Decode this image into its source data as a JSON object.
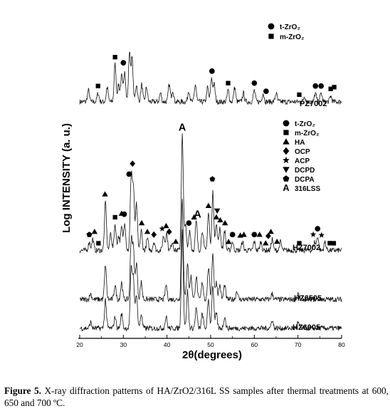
{
  "chart_data": {
    "type": "line",
    "xlabel": "2θ(degrees)",
    "ylabel": "Log INTENSITY (a. u.)",
    "xlim": [
      20,
      80
    ],
    "xticks": [
      20,
      30,
      40,
      50,
      60,
      70,
      80
    ],
    "xtick_labels": [
      "20",
      "30",
      "40",
      "50",
      "60",
      "70",
      "80"
    ],
    "grid": false,
    "series": [
      {
        "name": "PZ7002",
        "baseline": 0.82,
        "peaks": [
          {
            "x": 22.0,
            "h": 0.04
          },
          {
            "x": 24.2,
            "h": 0.03
          },
          {
            "x": 26.3,
            "h": 0.05
          },
          {
            "x": 28.1,
            "h": 0.13
          },
          {
            "x": 28.9,
            "h": 0.06
          },
          {
            "x": 29.6,
            "h": 0.09
          },
          {
            "x": 30.3,
            "h": 0.11
          },
          {
            "x": 31.4,
            "h": 0.17
          },
          {
            "x": 32.0,
            "h": 0.15
          },
          {
            "x": 33.0,
            "h": 0.06
          },
          {
            "x": 34.2,
            "h": 0.06
          },
          {
            "x": 35.3,
            "h": 0.05
          },
          {
            "x": 38.5,
            "h": 0.03
          },
          {
            "x": 40.5,
            "h": 0.06
          },
          {
            "x": 41.3,
            "h": 0.04
          },
          {
            "x": 45.0,
            "h": 0.04
          },
          {
            "x": 46.5,
            "h": 0.06
          },
          {
            "x": 49.3,
            "h": 0.05
          },
          {
            "x": 50.2,
            "h": 0.08
          },
          {
            "x": 50.8,
            "h": 0.06
          },
          {
            "x": 54.0,
            "h": 0.04
          },
          {
            "x": 55.5,
            "h": 0.05
          },
          {
            "x": 57.5,
            "h": 0.03
          },
          {
            "x": 60.0,
            "h": 0.04
          },
          {
            "x": 62.0,
            "h": 0.03
          },
          {
            "x": 65.0,
            "h": 0.03
          },
          {
            "x": 71.5,
            "h": 0.02
          },
          {
            "x": 74.0,
            "h": 0.03
          },
          {
            "x": 75.3,
            "h": 0.03
          },
          {
            "x": 77.5,
            "h": 0.02
          }
        ]
      },
      {
        "name": "HZ7002",
        "baseline": 0.305,
        "peaks": [
          {
            "x": 22.2,
            "h": 0.03
          },
          {
            "x": 23.0,
            "h": 0.04
          },
          {
            "x": 25.9,
            "h": 0.17
          },
          {
            "x": 27.1,
            "h": 0.06
          },
          {
            "x": 28.1,
            "h": 0.09
          },
          {
            "x": 28.9,
            "h": 0.05
          },
          {
            "x": 29.6,
            "h": 0.08
          },
          {
            "x": 30.3,
            "h": 0.1
          },
          {
            "x": 31.8,
            "h": 0.26
          },
          {
            "x": 32.3,
            "h": 0.21
          },
          {
            "x": 33.0,
            "h": 0.16
          },
          {
            "x": 34.1,
            "h": 0.07
          },
          {
            "x": 35.5,
            "h": 0.04
          },
          {
            "x": 37.0,
            "h": 0.03
          },
          {
            "x": 39.2,
            "h": 0.05
          },
          {
            "x": 39.9,
            "h": 0.06
          },
          {
            "x": 41.2,
            "h": 0.03
          },
          {
            "x": 43.5,
            "h": 0.4
          },
          {
            "x": 44.2,
            "h": 0.09
          },
          {
            "x": 45.2,
            "h": 0.07
          },
          {
            "x": 46.7,
            "h": 0.1
          },
          {
            "x": 48.1,
            "h": 0.07
          },
          {
            "x": 49.5,
            "h": 0.13
          },
          {
            "x": 50.5,
            "h": 0.2
          },
          {
            "x": 51.3,
            "h": 0.09
          },
          {
            "x": 52.1,
            "h": 0.08
          },
          {
            "x": 53.2,
            "h": 0.07
          },
          {
            "x": 55.0,
            "h": 0.03
          },
          {
            "x": 57.3,
            "h": 0.03
          },
          {
            "x": 60.0,
            "h": 0.03
          },
          {
            "x": 61.5,
            "h": 0.03
          },
          {
            "x": 64.1,
            "h": 0.04
          },
          {
            "x": 66.0,
            "h": 0.03
          },
          {
            "x": 73.8,
            "h": 0.03
          },
          {
            "x": 74.5,
            "h": 0.05
          },
          {
            "x": 76.2,
            "h": 0.03
          }
        ]
      },
      {
        "name": "HZ6505",
        "baseline": 0.135,
        "peaks": [
          {
            "x": 22.5,
            "h": 0.02
          },
          {
            "x": 25.9,
            "h": 0.12
          },
          {
            "x": 28.1,
            "h": 0.05
          },
          {
            "x": 29.6,
            "h": 0.06
          },
          {
            "x": 31.8,
            "h": 0.21
          },
          {
            "x": 32.3,
            "h": 0.17
          },
          {
            "x": 33.0,
            "h": 0.13
          },
          {
            "x": 34.1,
            "h": 0.06
          },
          {
            "x": 39.8,
            "h": 0.05
          },
          {
            "x": 43.5,
            "h": 0.35
          },
          {
            "x": 44.7,
            "h": 0.13
          },
          {
            "x": 45.5,
            "h": 0.08
          },
          {
            "x": 46.7,
            "h": 0.08
          },
          {
            "x": 48.1,
            "h": 0.06
          },
          {
            "x": 49.5,
            "h": 0.11
          },
          {
            "x": 50.5,
            "h": 0.16
          },
          {
            "x": 51.3,
            "h": 0.06
          },
          {
            "x": 52.1,
            "h": 0.05
          },
          {
            "x": 53.2,
            "h": 0.05
          },
          {
            "x": 56.0,
            "h": 0.03
          },
          {
            "x": 64.1,
            "h": 0.02
          },
          {
            "x": 70.0,
            "h": 0.02
          }
        ]
      },
      {
        "name": "HZ6005",
        "baseline": 0.035,
        "peaks": [
          {
            "x": 22.5,
            "h": 0.02
          },
          {
            "x": 25.9,
            "h": 0.1
          },
          {
            "x": 28.1,
            "h": 0.04
          },
          {
            "x": 29.6,
            "h": 0.05
          },
          {
            "x": 31.8,
            "h": 0.2
          },
          {
            "x": 32.3,
            "h": 0.17
          },
          {
            "x": 33.0,
            "h": 0.12
          },
          {
            "x": 34.1,
            "h": 0.05
          },
          {
            "x": 39.8,
            "h": 0.04
          },
          {
            "x": 43.5,
            "h": 0.34
          },
          {
            "x": 44.7,
            "h": 0.13
          },
          {
            "x": 46.7,
            "h": 0.07
          },
          {
            "x": 48.1,
            "h": 0.05
          },
          {
            "x": 49.5,
            "h": 0.1
          },
          {
            "x": 50.5,
            "h": 0.15
          },
          {
            "x": 51.3,
            "h": 0.05
          },
          {
            "x": 53.2,
            "h": 0.04
          },
          {
            "x": 64.1,
            "h": 0.03
          },
          {
            "x": 70.0,
            "h": 0.02
          }
        ]
      }
    ],
    "legends": [
      {
        "placement": "top-right",
        "entries": [
          {
            "symbol": "circle",
            "label": "t-ZrO₂"
          },
          {
            "symbol": "square",
            "label": "m-ZrO₂"
          }
        ]
      },
      {
        "placement": "middle-right",
        "entries": [
          {
            "symbol": "circle",
            "label": "t-ZrO₂"
          },
          {
            "symbol": "square",
            "label": "m-ZrO₂"
          },
          {
            "symbol": "triangle-up",
            "label": "HA"
          },
          {
            "symbol": "diamond",
            "label": "OCP"
          },
          {
            "symbol": "star",
            "label": "ACP"
          },
          {
            "symbol": "triangle-down",
            "label": "DCPD"
          },
          {
            "symbol": "pentagon",
            "label": "DCPA"
          },
          {
            "symbol": "letter-A",
            "label": "316LSS"
          }
        ]
      }
    ],
    "peak_markers": [
      {
        "series": "PZ7002",
        "x": 28.1,
        "symbol": "square"
      },
      {
        "series": "PZ7002",
        "x": 30.0,
        "symbol": "circle"
      },
      {
        "series": "PZ7002",
        "x": 24.2,
        "symbol": "square"
      },
      {
        "series": "PZ7002",
        "x": 50.3,
        "symbol": "circle"
      },
      {
        "series": "PZ7002",
        "x": 54.0,
        "symbol": "square"
      },
      {
        "series": "PZ7002",
        "x": 60.0,
        "symbol": "circle"
      },
      {
        "series": "PZ7002",
        "x": 62.7,
        "symbol": "circle"
      },
      {
        "series": "PZ7002",
        "x": 70.3,
        "symbol": "square"
      },
      {
        "series": "PZ7002",
        "x": 74.0,
        "symbol": "circle"
      },
      {
        "series": "PZ7002",
        "x": 75.3,
        "symbol": "circle"
      },
      {
        "series": "PZ7002",
        "x": 77.5,
        "symbol": "square"
      },
      {
        "series": "PZ7002",
        "x": 78.3,
        "symbol": "square"
      },
      {
        "series": "HZ7002",
        "x": 30.2,
        "symbol": "circle"
      },
      {
        "series": "HZ7002",
        "x": 31.3,
        "symbol": "circle"
      },
      {
        "series": "HZ7002",
        "x": 32.1,
        "symbol": "diamond"
      },
      {
        "series": "HZ7002",
        "x": 25.8,
        "symbol": "triangle-up"
      },
      {
        "series": "HZ7002",
        "x": 28.1,
        "symbol": "square"
      },
      {
        "series": "HZ7002",
        "x": 29.6,
        "symbol": "triangle-up"
      },
      {
        "series": "HZ7002",
        "x": 34.2,
        "symbol": "triangle-up"
      },
      {
        "series": "HZ7002",
        "x": 35.5,
        "symbol": "triangle-up"
      },
      {
        "series": "HZ7002",
        "x": 39.8,
        "symbol": "triangle-up"
      },
      {
        "series": "HZ7002",
        "x": 42.0,
        "symbol": "triangle-up"
      },
      {
        "series": "HZ7002",
        "x": 43.5,
        "symbol": "letter-A"
      },
      {
        "series": "HZ7002",
        "x": 47.0,
        "symbol": "letter-A"
      },
      {
        "series": "HZ7002",
        "x": 46.2,
        "symbol": "triangle-up"
      },
      {
        "series": "HZ7002",
        "x": 49.5,
        "symbol": "triangle-up"
      },
      {
        "series": "HZ7002",
        "x": 50.4,
        "symbol": "pentagon"
      },
      {
        "series": "HZ7002",
        "x": 51.3,
        "symbol": "triangle-up"
      },
      {
        "series": "HZ7002",
        "x": 52.2,
        "symbol": "triangle-up"
      },
      {
        "series": "HZ7002",
        "x": 53.3,
        "symbol": "triangle-up"
      },
      {
        "series": "HZ7002",
        "x": 54.1,
        "symbol": "triangle-up"
      },
      {
        "series": "HZ7002",
        "x": 22.2,
        "symbol": "pentagon"
      },
      {
        "series": "HZ7002",
        "x": 23.4,
        "symbol": "triangle-up"
      },
      {
        "series": "HZ7002",
        "x": 24.3,
        "symbol": "square"
      },
      {
        "series": "HZ7002",
        "x": 37.0,
        "symbol": "diamond"
      },
      {
        "series": "HZ7002",
        "x": 38.9,
        "symbol": "star"
      },
      {
        "series": "HZ7002",
        "x": 40.5,
        "symbol": "diamond"
      },
      {
        "series": "HZ7002",
        "x": 45.0,
        "symbol": "circle"
      },
      {
        "series": "HZ7002",
        "x": 51.5,
        "symbol": "triangle-down"
      },
      {
        "series": "HZ7002",
        "x": 55.0,
        "symbol": "circle"
      },
      {
        "series": "HZ7002",
        "x": 56.8,
        "symbol": "triangle-up"
      },
      {
        "series": "HZ7002",
        "x": 57.6,
        "symbol": "triangle-up"
      },
      {
        "series": "HZ7002",
        "x": 60.0,
        "symbol": "circle"
      },
      {
        "series": "HZ7002",
        "x": 61.2,
        "symbol": "triangle-up"
      },
      {
        "series": "HZ7002",
        "x": 62.6,
        "symbol": "triangle-up"
      },
      {
        "series": "HZ7002",
        "x": 63.2,
        "symbol": "diamond"
      },
      {
        "series": "HZ7002",
        "x": 63.8,
        "symbol": "triangle-up"
      },
      {
        "series": "HZ7002",
        "x": 65.2,
        "symbol": "triangle-up"
      },
      {
        "series": "HZ7002",
        "x": 70.3,
        "symbol": "square"
      },
      {
        "series": "HZ7002",
        "x": 73.5,
        "symbol": "star"
      },
      {
        "series": "HZ7002",
        "x": 74.5,
        "symbol": "circle"
      },
      {
        "series": "HZ7002",
        "x": 75.4,
        "symbol": "star"
      },
      {
        "series": "HZ7002",
        "x": 77.3,
        "symbol": "square"
      },
      {
        "series": "HZ7002",
        "x": 78.2,
        "symbol": "square"
      }
    ]
  },
  "caption": {
    "label": "Figure 5.",
    "text": "  X-ray diffraction patterns of HA/ZrO2/316L SS samples after thermal treatments at 600, 650 and 700 ºC."
  }
}
